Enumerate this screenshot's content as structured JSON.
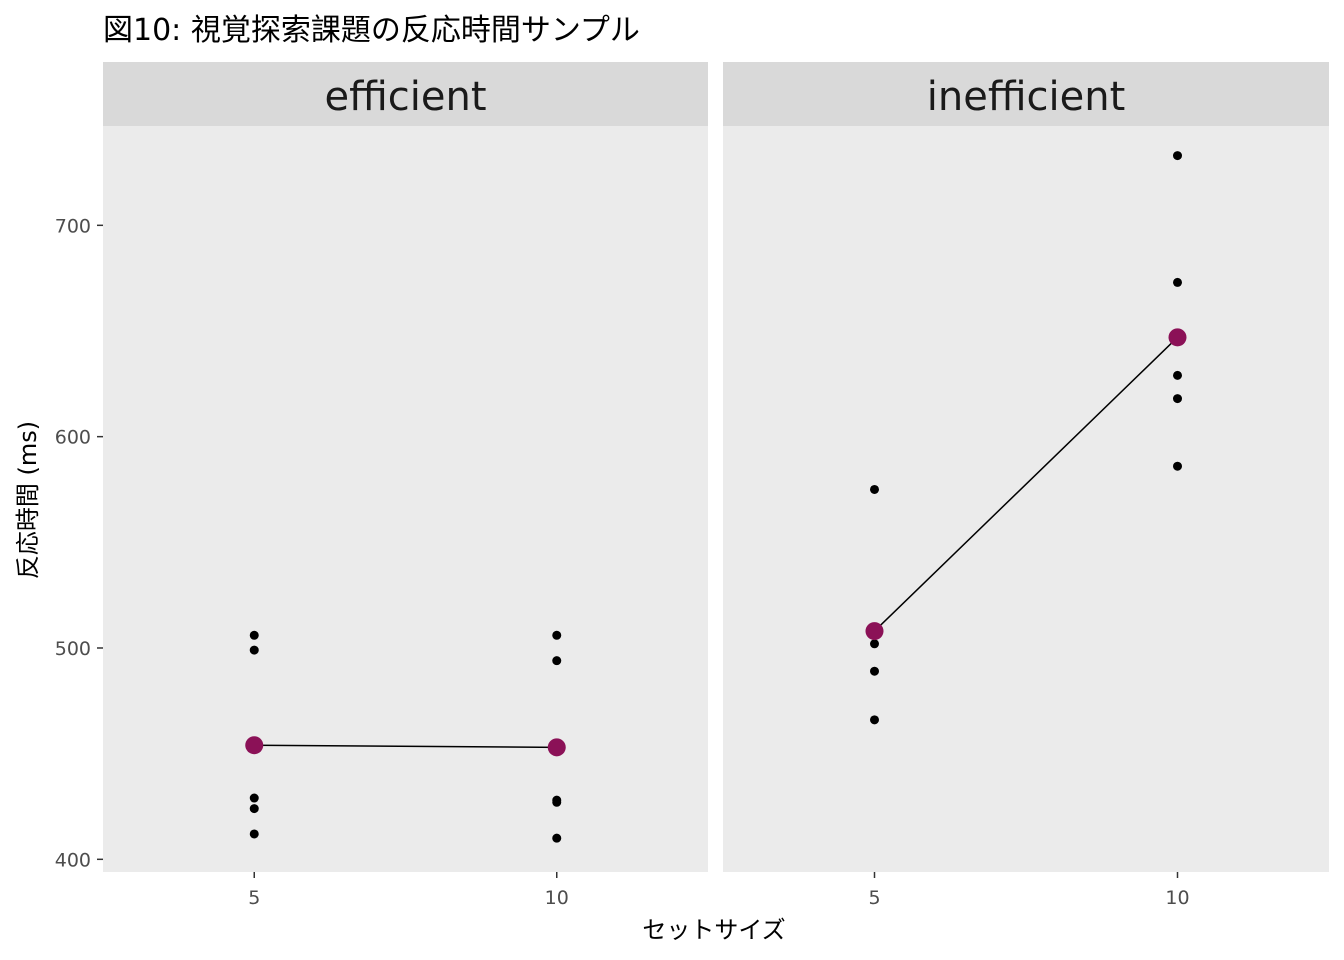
{
  "chart_data": {
    "type": "scatter",
    "title": "図10: 視覚探索課題の反応時間サンプル",
    "xlabel": "セットサイズ",
    "ylabel": "反応時間 (ms)",
    "x_ticks": [
      "5",
      "10"
    ],
    "y_ticks": [
      "400",
      "500",
      "600",
      "700"
    ],
    "xlim": [
      2.5,
      12.5
    ],
    "ylim": [
      394,
      747
    ],
    "grid": false,
    "point_color": "#000000",
    "mean_color": "#8B1157",
    "line_color": "#000000",
    "panel_background": "#EBEBEB",
    "strip_background": "#D9D9D9",
    "panels": [
      {
        "label": "efficient",
        "points": [
          {
            "x": 5,
            "y": 506
          },
          {
            "x": 5,
            "y": 499
          },
          {
            "x": 5,
            "y": 429
          },
          {
            "x": 5,
            "y": 424
          },
          {
            "x": 5,
            "y": 412
          },
          {
            "x": 10,
            "y": 506
          },
          {
            "x": 10,
            "y": 494
          },
          {
            "x": 10,
            "y": 428
          },
          {
            "x": 10,
            "y": 427
          },
          {
            "x": 10,
            "y": 410
          }
        ],
        "means": [
          {
            "x": 5,
            "y": 454
          },
          {
            "x": 10,
            "y": 453
          }
        ]
      },
      {
        "label": "inefficient",
        "points": [
          {
            "x": 5,
            "y": 575
          },
          {
            "x": 5,
            "y": 502
          },
          {
            "x": 5,
            "y": 489
          },
          {
            "x": 5,
            "y": 466
          },
          {
            "x": 10,
            "y": 733
          },
          {
            "x": 10,
            "y": 673
          },
          {
            "x": 10,
            "y": 629
          },
          {
            "x": 10,
            "y": 618
          },
          {
            "x": 10,
            "y": 586
          }
        ],
        "means": [
          {
            "x": 5,
            "y": 508
          },
          {
            "x": 10,
            "y": 647
          }
        ]
      }
    ]
  }
}
